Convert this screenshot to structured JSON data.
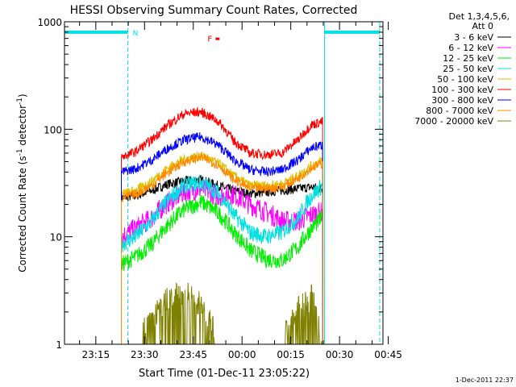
{
  "chart_data": {
    "type": "line",
    "title": "HESSI Observing Summary Count Rates, Corrected",
    "xlabel": "Start Time (01-Dec-11 23:05:22)",
    "ylabel_main": "Corrected Count Rate (s",
    "ylabel_sup1": "-1",
    "ylabel_mid": " detector",
    "ylabel_sup2": "-1",
    "ylabel_end": ")",
    "yscale": "log",
    "ylim": [
      1,
      1000
    ],
    "xlim_minutes": [
      0,
      98
    ],
    "x_ticks": [
      "23:15",
      "23:30",
      "23:45",
      "00:00",
      "00:15",
      "00:30",
      "00:45"
    ],
    "y_ticks": [
      "1",
      "10",
      "100",
      "1000"
    ],
    "legend_header": [
      "Det 1,3,4,5,6,",
      "Att 0"
    ],
    "timestamp": "1-Dec-2011 22:37",
    "annotations": {
      "night_label": "N",
      "flare_label": "F"
    },
    "colors": {
      "night_bars": "#00e0e0",
      "flare_marker": "#ff0000",
      "axes": "#000000"
    },
    "data_start_minute": 17.5,
    "data_end_minute": 79.5,
    "series_x_minutes": [
      17.5,
      22,
      27,
      32,
      37,
      42,
      47,
      52,
      57,
      62,
      67,
      72,
      76,
      79.5
    ],
    "series": [
      {
        "name": "3 - 6 keV",
        "color": "#000000",
        "values": [
          23,
          24,
          27,
          31,
          33,
          34,
          30,
          27,
          25,
          26,
          27,
          28,
          29,
          28
        ]
      },
      {
        "name": "6 - 12 keV",
        "color": "#ff00ff",
        "values": [
          10,
          12,
          15,
          21,
          26,
          28,
          24,
          25,
          20,
          17,
          14,
          14,
          16,
          17
        ]
      },
      {
        "name": "12 - 25 keV",
        "color": "#00ee00",
        "values": [
          5.5,
          6.5,
          8.5,
          13,
          18,
          21,
          17,
          11,
          7.5,
          6.2,
          6,
          8,
          12,
          15
        ]
      },
      {
        "name": "25 - 50 keV",
        "color": "#00e0e0",
        "values": [
          8.5,
          10,
          14,
          22,
          30,
          32,
          26,
          16,
          11,
          10,
          11,
          15,
          24,
          30
        ]
      },
      {
        "name": "50 - 100 keV",
        "color": "#e0c000",
        "values": [
          25,
          27,
          33,
          44,
          53,
          57,
          49,
          37,
          30,
          30,
          31,
          37,
          46,
          52
        ]
      },
      {
        "name": "100 - 300 keV",
        "color": "#ff0000",
        "values": [
          55,
          62,
          80,
          110,
          140,
          145,
          120,
          78,
          60,
          58,
          60,
          80,
          110,
          118
        ]
      },
      {
        "name": "300 - 800 keV",
        "color": "#0000ff",
        "values": [
          40,
          43,
          52,
          67,
          80,
          85,
          72,
          52,
          42,
          40,
          42,
          52,
          67,
          72
        ]
      },
      {
        "name": "800 - 7000 keV",
        "color": "#ff8800",
        "values": [
          23,
          25,
          30,
          40,
          50,
          55,
          47,
          34,
          28,
          28,
          29,
          35,
          44,
          48
        ]
      },
      {
        "name": "7000 - 20000 keV",
        "color": "#808000",
        "values": [
          1,
          1,
          1.6,
          2.5,
          2.8,
          2.2,
          1,
          1,
          1,
          1,
          1,
          2.0,
          2.6,
          1
        ]
      }
    ]
  }
}
